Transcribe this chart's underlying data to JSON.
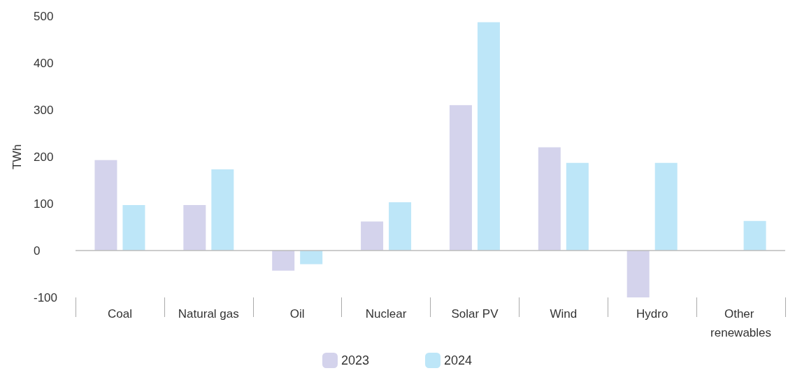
{
  "chart_data": {
    "type": "bar",
    "ylabel": "TWh",
    "categories": [
      "Coal",
      "Natural gas",
      "Oil",
      "Nuclear",
      "Solar PV",
      "Wind",
      "Hydro",
      "Other renewables"
    ],
    "series": [
      {
        "name": "2023",
        "color": "#d4d3ec",
        "values": [
          193,
          97,
          -43,
          62,
          310,
          220,
          -100,
          null
        ]
      },
      {
        "name": "2024",
        "color": "#bde6f8",
        "values": [
          97,
          173,
          -29,
          103,
          487,
          187,
          187,
          63
        ]
      }
    ],
    "ylim": [
      -100,
      500
    ],
    "yticks": [
      -100,
      0,
      100,
      200,
      300,
      400,
      500
    ],
    "ref_lines": [
      {
        "axis": "y",
        "value": 0
      }
    ],
    "grid": false,
    "legend": "bottom"
  }
}
